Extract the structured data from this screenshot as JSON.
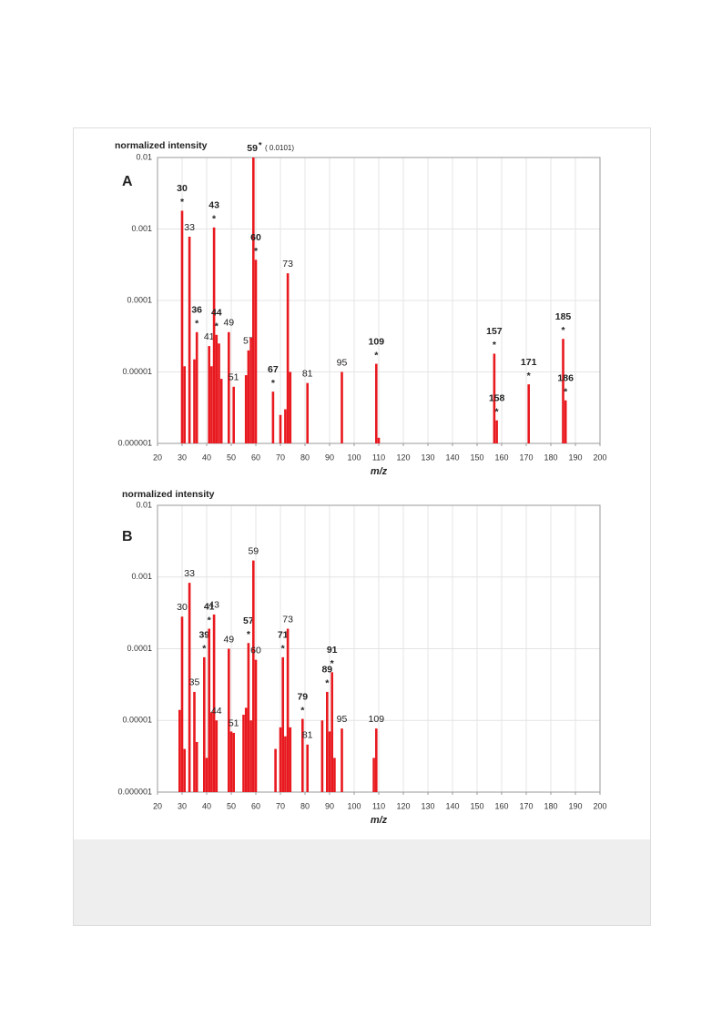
{
  "chart_data": [
    {
      "type": "bar",
      "panel": "A",
      "y_label": "normalized intensity",
      "x_label": "m/z",
      "note": "( 0.0101)",
      "log_scale": true,
      "grid": true,
      "color": "#e8191f",
      "xlim": [
        20,
        200
      ],
      "xticks": [
        20,
        30,
        40,
        50,
        60,
        70,
        80,
        90,
        100,
        110,
        120,
        130,
        140,
        150,
        160,
        170,
        180,
        190,
        200
      ],
      "ylim": [
        1e-06,
        0.01
      ],
      "yticks": [
        1e-06,
        1e-05,
        0.0001,
        0.001,
        0.01
      ],
      "x": [
        30,
        31,
        33,
        35,
        36,
        41,
        42,
        43,
        44,
        45,
        46,
        49,
        51,
        56,
        57,
        58,
        59,
        60,
        67,
        70,
        72,
        73,
        74,
        81,
        95,
        109,
        110,
        157,
        158,
        171,
        185,
        186
      ],
      "values": [
        0.0018,
        1.2e-05,
        0.00078,
        1.5e-05,
        3.6e-05,
        2.3e-05,
        1.2e-05,
        0.00105,
        3.3e-05,
        2.5e-05,
        8e-06,
        3.6e-05,
        6.2e-06,
        9e-06,
        2e-05,
        3e-05,
        0.0101,
        0.00037,
        5.3e-06,
        2.5e-06,
        3e-06,
        0.00024,
        1e-05,
        7e-06,
        1e-05,
        1.3e-05,
        1.2e-06,
        1.8e-05,
        2.1e-06,
        6.7e-06,
        2.9e-05,
        4e-06
      ],
      "labels": [
        "30",
        null,
        "33",
        null,
        "36",
        "41",
        null,
        "43",
        "44",
        null,
        null,
        "49",
        "51",
        null,
        "57",
        null,
        "59",
        "60",
        "67",
        null,
        null,
        "73",
        null,
        "81",
        "95",
        "109",
        null,
        "157",
        "158",
        "171",
        "185",
        "186"
      ],
      "stars": [
        "*",
        null,
        null,
        null,
        "*",
        null,
        null,
        "*",
        "*",
        null,
        null,
        null,
        null,
        null,
        null,
        null,
        "*",
        "*",
        "*",
        null,
        null,
        null,
        null,
        null,
        null,
        "*",
        null,
        "*",
        "*",
        "*",
        "*",
        "*"
      ],
      "bold": [
        true,
        false,
        false,
        false,
        true,
        false,
        false,
        true,
        true,
        false,
        false,
        false,
        false,
        false,
        false,
        false,
        true,
        true,
        true,
        false,
        false,
        false,
        false,
        false,
        false,
        true,
        false,
        true,
        true,
        true,
        true,
        true
      ]
    },
    {
      "type": "bar",
      "panel": "B",
      "y_label": "normalized intensity",
      "x_label": "m/z",
      "log_scale": true,
      "grid": true,
      "color": "#e8191f",
      "xlim": [
        20,
        200
      ],
      "xticks": [
        20,
        30,
        40,
        50,
        60,
        70,
        80,
        90,
        100,
        110,
        120,
        130,
        140,
        150,
        160,
        170,
        180,
        190,
        200
      ],
      "ylim": [
        1e-06,
        0.01
      ],
      "yticks": [
        1e-06,
        1e-05,
        0.0001,
        0.001,
        0.01
      ],
      "x": [
        29,
        30,
        31,
        33,
        35,
        36,
        39,
        40,
        41,
        42,
        43,
        44,
        49,
        50,
        51,
        55,
        56,
        57,
        58,
        59,
        60,
        68,
        70,
        71,
        72,
        73,
        74,
        79,
        81,
        87,
        89,
        90,
        91,
        92,
        95,
        108,
        109
      ],
      "values": [
        1.4e-05,
        0.00028,
        4e-06,
        0.00083,
        2.5e-05,
        5e-06,
        7.6e-05,
        3e-06,
        0.00019,
        1.3e-05,
        0.0003,
        1e-05,
        0.0001,
        7e-06,
        6.7e-06,
        1.2e-05,
        1.5e-05,
        0.00012,
        1e-05,
        0.0017,
        7e-05,
        4e-06,
        8e-06,
        7.6e-05,
        6e-06,
        0.00019,
        8e-06,
        1.05e-05,
        4.6e-06,
        1e-05,
        2.5e-05,
        7e-06,
        4.7e-05,
        3e-06,
        7.7e-06,
        3e-06,
        7.7e-06
      ],
      "labels": [
        null,
        "30",
        null,
        "33",
        "35",
        null,
        "39",
        null,
        "41",
        null,
        "43",
        "44",
        "49",
        null,
        "51",
        null,
        null,
        "57",
        null,
        "59",
        "60",
        null,
        null,
        "71",
        null,
        "73",
        null,
        "79",
        "81",
        null,
        "89",
        null,
        "91",
        null,
        "95",
        null,
        "109"
      ],
      "stars": [
        null,
        null,
        null,
        null,
        null,
        null,
        "*",
        null,
        "*",
        null,
        null,
        null,
        null,
        null,
        null,
        null,
        null,
        "*",
        null,
        null,
        null,
        null,
        null,
        "*",
        null,
        null,
        null,
        "*",
        null,
        null,
        "*",
        null,
        "*",
        null,
        null,
        null,
        null
      ],
      "bold": [
        false,
        false,
        false,
        false,
        false,
        false,
        true,
        false,
        true,
        false,
        false,
        false,
        false,
        false,
        false,
        false,
        false,
        true,
        false,
        false,
        false,
        false,
        false,
        true,
        false,
        false,
        false,
        true,
        false,
        false,
        true,
        false,
        true,
        false,
        false,
        false,
        false
      ]
    }
  ]
}
